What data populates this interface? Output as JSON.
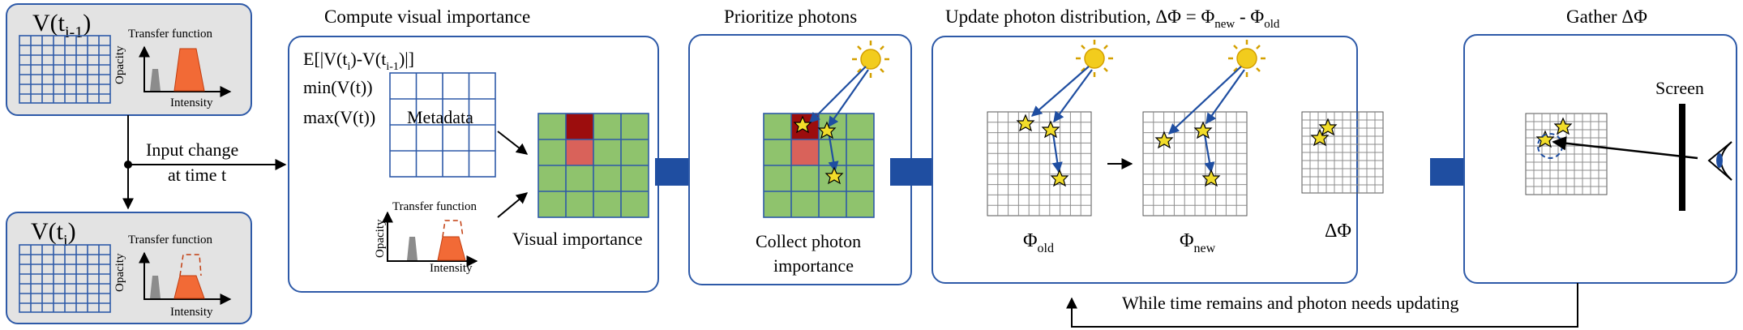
{
  "inputs": {
    "prev": {
      "label_main": "V(t",
      "label_sub": "i-1",
      "label_close": ")"
    },
    "curr": {
      "label_main": "V(t",
      "label_sub": "i",
      "label_close": ")"
    },
    "transfer_function": "Transfer function",
    "opacity": "Opacity",
    "intensity": "Intensity"
  },
  "input_change": {
    "line1": "Input change",
    "line2": "at time t"
  },
  "stages": {
    "compute": {
      "title": "Compute visual importance",
      "formula_prefix": "E[|V(t",
      "formula_sub1": "i",
      "formula_mid": ")-V(t",
      "formula_sub2": "i-1",
      "formula_suffix": ")|]",
      "min": "min(V(t))",
      "max": "max(V(t))",
      "metadata": "Metadata",
      "transfer_function": "Transfer function",
      "opacity": "Opacity",
      "intensity": "Intensity",
      "visual_importance": "Visual importance"
    },
    "prioritize": {
      "title": "Prioritize photons",
      "collect_line1": "Collect photon",
      "collect_line2": "importance"
    },
    "update": {
      "title_prefix": "Update photon distribution, ΔΦ = Φ",
      "title_sub_new": "new",
      "title_mid": " - Φ",
      "title_sub_old": "old",
      "phi_old_main": "Φ",
      "phi_old_sub": "old",
      "phi_new_main": "Φ",
      "phi_new_sub": "new",
      "delta_phi": "ΔΦ"
    },
    "gather": {
      "title": "Gather ΔΦ",
      "screen": "Screen"
    }
  },
  "loop_label": "While time remains and photon needs updating",
  "colors": {
    "box_border": "#2e5aa8",
    "input_fill": "#e3e3e3",
    "grid_blue": "#2e5aa8",
    "green_cell": "#8fc36d",
    "dark_red_cell": "#9c0d0d",
    "light_red_cell": "#d9625a",
    "arrow_blue": "#1f4ea1",
    "sun": "#f2cc1d",
    "star": "#f2dd2a",
    "tf_orange": "#f26a36",
    "tf_gray": "#8c8c8c"
  }
}
